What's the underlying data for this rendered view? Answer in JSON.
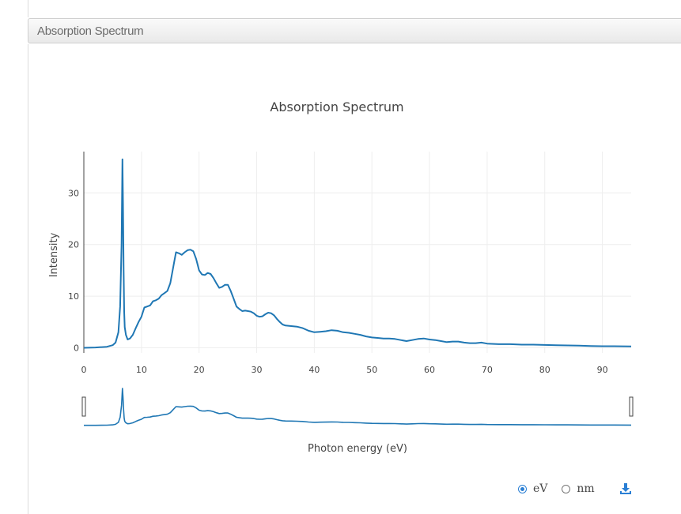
{
  "panel": {
    "title": "Absorption Spectrum"
  },
  "controls": {
    "unit_options": [
      {
        "label": "eV",
        "selected": true
      },
      {
        "label": "nm",
        "selected": false
      }
    ]
  },
  "colors": {
    "line": "#1f77b4",
    "grid": "#eeeeee",
    "accent": "#2a7fd4"
  },
  "icons": {
    "download": "download-icon"
  },
  "chart_data": {
    "type": "line",
    "title": "Absorption Spectrum",
    "xlabel": "Photon energy (eV)",
    "ylabel": "Intensity",
    "xlim": [
      0,
      95
    ],
    "ylim": [
      -1,
      38
    ],
    "xticks": [
      0,
      10,
      20,
      30,
      40,
      50,
      60,
      70,
      80,
      90
    ],
    "yticks": [
      0,
      10,
      20,
      30
    ],
    "grid": true,
    "range_slider": true,
    "series": [
      {
        "x": [
          0,
          2,
          4,
          5,
          5.5,
          6,
          6.3,
          6.55,
          6.7,
          6.8,
          6.9,
          7.0,
          7.1,
          7.3,
          7.6,
          8.0,
          8.5,
          9.0,
          9.5,
          10.0,
          10.5,
          11.0,
          11.5,
          12.0,
          12.5,
          13.0,
          13.5,
          14.0,
          14.5,
          15.0,
          15.5,
          16.0,
          16.5,
          17.0,
          17.5,
          18.0,
          18.5,
          19.0,
          19.5,
          20.0,
          20.5,
          21.0,
          21.5,
          22.0,
          22.5,
          23.0,
          23.5,
          24.0,
          24.5,
          25.0,
          25.5,
          26.0,
          26.5,
          27.0,
          27.5,
          28.0,
          28.5,
          29.0,
          29.5,
          30.0,
          30.5,
          31.0,
          31.5,
          32.0,
          32.5,
          33.0,
          33.5,
          34.0,
          34.5,
          35.0,
          36.0,
          37.0,
          38.0,
          39.0,
          40.0,
          41.0,
          42.0,
          43.0,
          44.0,
          45.0,
          46.0,
          47.0,
          48.0,
          49.0,
          50.0,
          51.0,
          52.0,
          53.0,
          54.0,
          55.0,
          56.0,
          57.0,
          58.0,
          59.0,
          60.0,
          61.0,
          62.0,
          63.0,
          64.0,
          65.0,
          66.0,
          67.0,
          68.0,
          69.0,
          70.0,
          72.0,
          74.0,
          76.0,
          78.0,
          80.0,
          82.0,
          84.0,
          86.0,
          88.0,
          90.0,
          92.0,
          95.0
        ],
        "y": [
          0.0,
          0.05,
          0.2,
          0.5,
          1.0,
          3.0,
          8.0,
          20.0,
          36.5,
          28.0,
          15.0,
          7.0,
          4.0,
          2.5,
          1.6,
          1.8,
          2.5,
          3.8,
          5.0,
          6.0,
          7.8,
          8.0,
          8.2,
          9.0,
          9.2,
          9.5,
          10.2,
          10.6,
          11.0,
          12.5,
          15.5,
          18.5,
          18.3,
          18.0,
          18.5,
          18.9,
          19.0,
          18.7,
          17.2,
          15.0,
          14.2,
          14.1,
          14.5,
          14.3,
          13.5,
          12.5,
          11.6,
          11.8,
          12.2,
          12.2,
          11.0,
          9.5,
          8.0,
          7.5,
          7.1,
          7.2,
          7.1,
          7.0,
          6.7,
          6.2,
          6.0,
          6.1,
          6.5,
          6.8,
          6.7,
          6.3,
          5.6,
          5.0,
          4.5,
          4.3,
          4.2,
          4.1,
          3.8,
          3.3,
          3.0,
          3.1,
          3.2,
          3.4,
          3.3,
          3.0,
          2.9,
          2.7,
          2.5,
          2.2,
          2.0,
          1.9,
          1.8,
          1.8,
          1.7,
          1.5,
          1.3,
          1.5,
          1.7,
          1.8,
          1.6,
          1.5,
          1.3,
          1.1,
          1.2,
          1.2,
          1.0,
          0.9,
          0.9,
          1.0,
          0.8,
          0.7,
          0.7,
          0.6,
          0.6,
          0.55,
          0.5,
          0.45,
          0.4,
          0.35,
          0.3,
          0.3,
          0.25
        ]
      }
    ]
  }
}
